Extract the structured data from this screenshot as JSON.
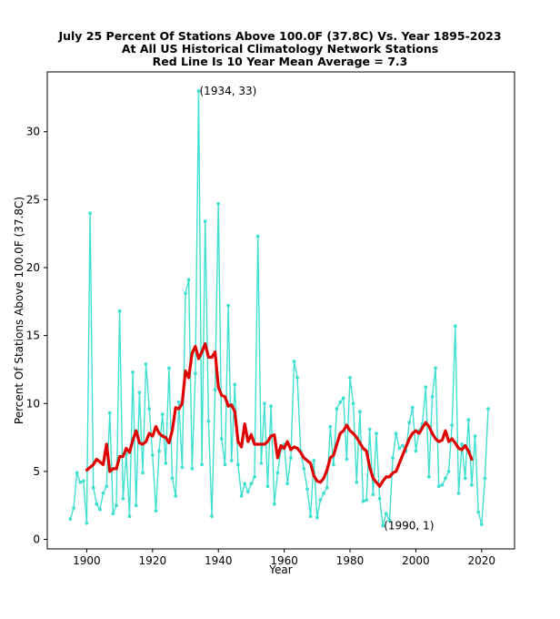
{
  "chart_data": {
    "type": "line",
    "title_lines": [
      "July 25 Percent Of Stations Above 100.0F (37.8C) Vs. Year 1895-2023",
      "At All US Historical Climatology Network Stations",
      "Red Line Is 10 Year Mean  Average = 7.3"
    ],
    "xlabel": "Year",
    "ylabel": "Percent Of Stations Above 100.0F (37.8C)",
    "xlim": [
      1888,
      2030
    ],
    "ylim": [
      -0.7,
      34.4
    ],
    "xticks": [
      1900,
      1920,
      1940,
      1960,
      1980,
      2000,
      2020
    ],
    "yticks": [
      0,
      5,
      10,
      15,
      20,
      25,
      30
    ],
    "grid": false,
    "series": [
      {
        "name": "Percent of stations",
        "color": "#40E0D0",
        "x": [
          1895,
          1896,
          1897,
          1898,
          1899,
          1900,
          1901,
          1902,
          1903,
          1904,
          1905,
          1906,
          1907,
          1908,
          1909,
          1910,
          1911,
          1912,
          1913,
          1914,
          1915,
          1916,
          1917,
          1918,
          1919,
          1920,
          1921,
          1922,
          1923,
          1924,
          1925,
          1926,
          1927,
          1928,
          1929,
          1930,
          1931,
          1932,
          1933,
          1934,
          1935,
          1936,
          1937,
          1938,
          1939,
          1940,
          1941,
          1942,
          1943,
          1944,
          1945,
          1946,
          1947,
          1948,
          1949,
          1950,
          1951,
          1952,
          1953,
          1954,
          1955,
          1956,
          1957,
          1958,
          1959,
          1960,
          1961,
          1962,
          1963,
          1964,
          1965,
          1966,
          1967,
          1968,
          1969,
          1970,
          1971,
          1972,
          1973,
          1974,
          1975,
          1976,
          1977,
          1978,
          1979,
          1980,
          1981,
          1982,
          1983,
          1984,
          1985,
          1986,
          1987,
          1988,
          1989,
          1990,
          1991,
          1992,
          1993,
          1994,
          1995,
          1996,
          1997,
          1998,
          1999,
          2000,
          2001,
          2002,
          2003,
          2004,
          2005,
          2006,
          2007,
          2008,
          2009,
          2010,
          2011,
          2012,
          2013,
          2014,
          2015,
          2016,
          2017,
          2018,
          2019,
          2020,
          2021,
          2022
        ],
        "values": [
          1.5,
          2.3,
          4.9,
          4.2,
          4.3,
          1.2,
          24.0,
          3.8,
          2.6,
          2.2,
          3.4,
          3.9,
          9.3,
          1.9,
          2.5,
          16.8,
          3.0,
          6.3,
          1.7,
          12.3,
          2.5,
          10.8,
          4.9,
          12.9,
          9.6,
          6.2,
          2.1,
          6.5,
          9.2,
          5.6,
          12.6,
          4.5,
          3.2,
          10.1,
          5.3,
          18.1,
          19.1,
          5.2,
          12.2,
          33.0,
          5.5,
          23.4,
          8.7,
          1.7,
          11.0,
          24.7,
          7.4,
          5.5,
          17.2,
          5.8,
          11.4,
          5.5,
          3.2,
          4.1,
          3.5,
          4.1,
          4.6,
          22.3,
          5.6,
          10.0,
          3.9,
          9.8,
          2.6,
          4.9,
          6.6,
          7.0,
          4.1,
          6.0,
          13.1,
          11.9,
          6.5,
          5.2,
          3.7,
          1.7,
          5.8,
          1.6,
          2.9,
          3.4,
          3.8,
          8.3,
          5.5,
          9.6,
          10.1,
          10.4,
          5.9,
          11.9,
          10.0,
          4.2,
          9.4,
          2.8,
          2.9,
          8.1,
          3.3,
          7.8,
          3.0,
          1.0,
          1.9,
          1.4,
          6.0,
          7.8,
          6.7,
          6.9,
          6.5,
          8.6,
          9.7,
          6.5,
          8.0,
          8.5,
          11.2,
          4.6,
          10.5,
          12.6,
          3.9,
          4.0,
          4.5,
          5.0,
          8.4,
          15.7,
          3.4,
          7.0,
          4.5,
          8.8,
          4.0,
          7.6,
          2.0,
          1.1,
          4.5,
          9.6
        ]
      },
      {
        "name": "10 Year Mean",
        "color": "#e00000",
        "x": [
          1900,
          1901,
          1902,
          1903,
          1904,
          1905,
          1906,
          1907,
          1908,
          1909,
          1910,
          1911,
          1912,
          1913,
          1914,
          1915,
          1916,
          1917,
          1918,
          1919,
          1920,
          1921,
          1922,
          1923,
          1924,
          1925,
          1926,
          1927,
          1928,
          1929,
          1930,
          1931,
          1932,
          1933,
          1934,
          1935,
          1936,
          1937,
          1938,
          1939,
          1940,
          1941,
          1942,
          1943,
          1944,
          1945,
          1946,
          1947,
          1948,
          1949,
          1950,
          1951,
          1952,
          1953,
          1954,
          1955,
          1956,
          1957,
          1958,
          1959,
          1960,
          1961,
          1962,
          1963,
          1964,
          1965,
          1966,
          1967,
          1968,
          1969,
          1970,
          1971,
          1972,
          1973,
          1974,
          1975,
          1976,
          1977,
          1978,
          1979,
          1980,
          1981,
          1982,
          1983,
          1984,
          1985,
          1986,
          1987,
          1988,
          1989,
          1990,
          1991,
          1992,
          1993,
          1994,
          1995,
          1996,
          1997,
          1998,
          1999,
          2000,
          2001,
          2002,
          2003,
          2004,
          2005,
          2006,
          2007,
          2008,
          2009,
          2010,
          2011,
          2012,
          2013,
          2014,
          2015,
          2016,
          2017
        ],
        "values": [
          5.1,
          5.3,
          5.5,
          5.9,
          5.7,
          5.5,
          7.0,
          5.0,
          5.2,
          5.2,
          6.1,
          6.1,
          6.7,
          6.4,
          7.3,
          8.0,
          7.1,
          7.0,
          7.2,
          7.8,
          7.6,
          8.3,
          7.8,
          7.6,
          7.5,
          7.1,
          8.0,
          9.7,
          9.6,
          10.0,
          12.4,
          11.9,
          13.7,
          14.2,
          13.3,
          13.8,
          14.4,
          13.4,
          13.4,
          13.8,
          11.2,
          10.6,
          10.5,
          9.8,
          9.9,
          9.4,
          7.2,
          6.8,
          8.5,
          7.2,
          7.7,
          7.0,
          7.0,
          7.0,
          7.0,
          7.2,
          7.6,
          7.7,
          6.0,
          6.9,
          6.7,
          7.2,
          6.6,
          6.8,
          6.7,
          6.4,
          6.0,
          5.8,
          5.6,
          4.7,
          4.3,
          4.2,
          4.5,
          5.1,
          6.0,
          6.2,
          7.0,
          7.8,
          8.0,
          8.4,
          8.0,
          7.8,
          7.5,
          7.1,
          6.7,
          6.5,
          5.3,
          4.5,
          4.2,
          3.9,
          4.3,
          4.6,
          4.6,
          4.9,
          5.0,
          5.6,
          6.2,
          6.8,
          7.4,
          7.8,
          8.0,
          7.8,
          8.2,
          8.6,
          8.3,
          7.8,
          7.4,
          7.2,
          7.3,
          8.0,
          7.2,
          7.4,
          7.1,
          6.7,
          6.6,
          6.9,
          6.5,
          5.9
        ]
      }
    ],
    "annotations": [
      {
        "text": "(1934, 33)",
        "x": 1934,
        "y": 33
      },
      {
        "text": "(1990, 1)",
        "x": 1990,
        "y": 1
      }
    ]
  }
}
